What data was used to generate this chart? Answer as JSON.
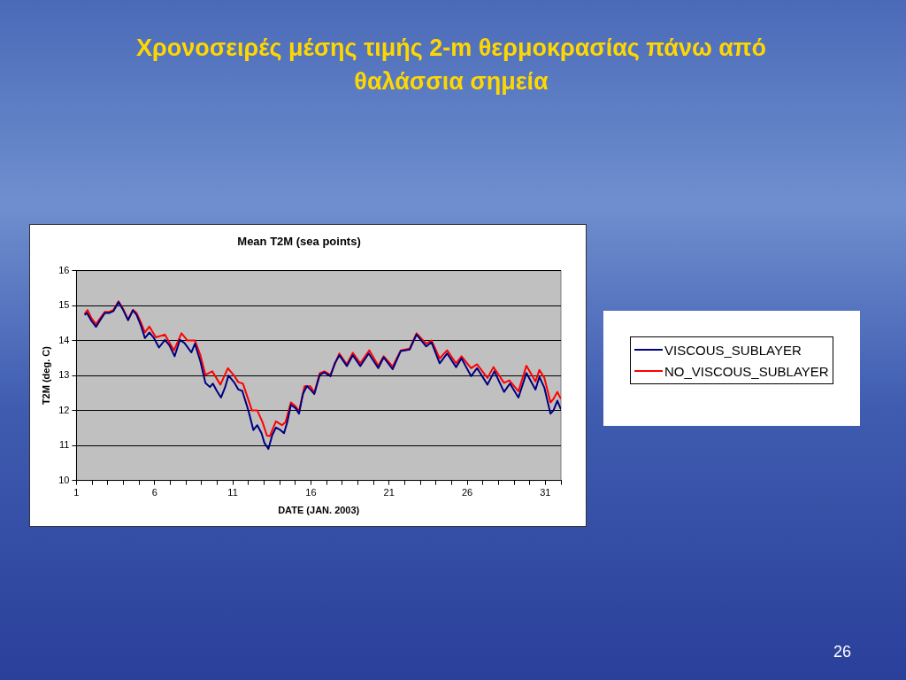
{
  "chart_data": {
    "type": "line",
    "title": "Χρονοσειρές μέσης τιμής 2-m θερμοκρασίας πάνω από θαλάσσια σημεία",
    "subtitle": "Mean T2M (sea points)",
    "xlabel": "DATE (JAN. 2003)",
    "ylabel": "T2M (deg. C)",
    "xlim": [
      1,
      32
    ],
    "ylim": [
      10,
      16
    ],
    "yticks": [
      10,
      11,
      12,
      13,
      14,
      15,
      16
    ],
    "xticks": [
      1,
      {
        "value": 2,
        "label": null
      },
      {
        "value": 3,
        "label": null
      },
      {
        "value": 4,
        "label": null
      },
      {
        "value": 5,
        "label": null
      },
      6,
      {
        "value": 7,
        "label": null
      },
      {
        "value": 8,
        "label": null
      },
      {
        "value": 9,
        "label": null
      },
      {
        "value": 10,
        "label": null
      },
      11,
      {
        "value": 12,
        "label": null
      },
      {
        "value": 13,
        "label": null
      },
      {
        "value": 14,
        "label": null
      },
      {
        "value": 15,
        "label": null
      },
      16,
      {
        "value": 17,
        "label": null
      },
      {
        "value": 18,
        "label": null
      },
      {
        "value": 19,
        "label": null
      },
      {
        "value": 20,
        "label": null
      },
      21,
      {
        "value": 22,
        "label": null
      },
      {
        "value": 23,
        "label": null
      },
      {
        "value": 24,
        "label": null
      },
      {
        "value": 25,
        "label": null
      },
      26,
      {
        "value": 27,
        "label": null
      },
      {
        "value": 28,
        "label": null
      },
      {
        "value": 29,
        "label": null
      },
      {
        "value": 30,
        "label": null
      },
      31,
      {
        "value": 32,
        "label": null
      }
    ],
    "grid": "y",
    "legend": "right",
    "marker": "none",
    "line_style": "solid",
    "annotations": [
      "26"
    ],
    "series": [
      {
        "name": "VISCOUS_SUBLAYER",
        "color": "#000080",
        "x": [
          1.52,
          1.67,
          1.96,
          2.25,
          2.54,
          2.82,
          3.11,
          3.36,
          3.69,
          3.98,
          4.3,
          4.61,
          4.84,
          5.13,
          5.38,
          5.66,
          5.93,
          6.28,
          6.66,
          6.95,
          7.28,
          7.62,
          7.91,
          8.35,
          8.58,
          8.93,
          9.25,
          9.54,
          9.73,
          9.98,
          10.25,
          10.5,
          10.73,
          11.08,
          11.36,
          11.61,
          12.0,
          12.32,
          12.57,
          12.84,
          13.03,
          13.28,
          13.53,
          13.76,
          14.05,
          14.28,
          14.49,
          14.72,
          15.01,
          15.24,
          15.49,
          15.74,
          15.97,
          16.22,
          16.57,
          16.86,
          17.25,
          17.53,
          17.82,
          18.3,
          18.68,
          19.16,
          19.7,
          20.31,
          20.66,
          21.23,
          21.75,
          22.32,
          22.76,
          23.38,
          23.72,
          24.24,
          24.72,
          25.29,
          25.64,
          26.25,
          26.63,
          27.3,
          27.74,
          28.36,
          28.74,
          29.28,
          29.79,
          30.37,
          30.62,
          30.94,
          31.33,
          31.52,
          31.77,
          32.0
        ],
        "values": [
          14.73,
          14.79,
          14.56,
          14.39,
          14.6,
          14.79,
          14.79,
          14.84,
          15.1,
          14.88,
          14.58,
          14.86,
          14.74,
          14.42,
          14.07,
          14.23,
          14.09,
          13.8,
          14.02,
          13.86,
          13.55,
          14.02,
          13.93,
          13.66,
          13.91,
          13.4,
          12.79,
          12.67,
          12.77,
          12.56,
          12.37,
          12.65,
          13.0,
          12.81,
          12.6,
          12.56,
          12.0,
          11.44,
          11.58,
          11.35,
          11.07,
          10.9,
          11.3,
          11.51,
          11.44,
          11.35,
          11.67,
          12.16,
          12.07,
          11.91,
          12.47,
          12.7,
          12.6,
          12.47,
          13.02,
          13.09,
          12.98,
          13.35,
          13.58,
          13.27,
          13.58,
          13.27,
          13.63,
          13.21,
          13.52,
          13.18,
          13.7,
          13.74,
          14.17,
          13.83,
          13.95,
          13.35,
          13.63,
          13.24,
          13.49,
          12.98,
          13.21,
          12.74,
          13.12,
          12.53,
          12.77,
          12.37,
          13.07,
          12.6,
          12.96,
          12.65,
          11.91,
          12.0,
          12.28,
          12.03
        ]
      },
      {
        "name": "NO_VISCOUS_SUBLAYER",
        "color": "#ff0000",
        "x": [
          1.52,
          1.71,
          1.96,
          2.25,
          2.54,
          2.82,
          3.11,
          3.36,
          3.69,
          3.98,
          4.3,
          4.61,
          4.84,
          5.13,
          5.38,
          5.66,
          6.08,
          6.66,
          7.24,
          7.72,
          8.1,
          8.58,
          8.93,
          9.25,
          9.69,
          10.21,
          10.69,
          11.08,
          11.36,
          11.65,
          12.23,
          12.57,
          12.9,
          13.19,
          13.38,
          13.76,
          14.15,
          14.38,
          14.72,
          15.01,
          15.24,
          15.59,
          15.97,
          16.22,
          16.57,
          16.86,
          17.25,
          17.82,
          18.3,
          18.68,
          19.16,
          19.74,
          20.31,
          20.66,
          21.23,
          21.75,
          22.32,
          22.76,
          23.38,
          23.72,
          24.24,
          24.72,
          25.29,
          25.64,
          26.25,
          26.63,
          27.3,
          27.68,
          28.36,
          28.7,
          29.28,
          29.79,
          30.37,
          30.62,
          30.94,
          31.33,
          31.52,
          31.77,
          32.0
        ],
        "values": [
          14.76,
          14.87,
          14.64,
          14.47,
          14.65,
          14.82,
          14.82,
          14.87,
          15.12,
          14.91,
          14.6,
          14.88,
          14.79,
          14.51,
          14.23,
          14.4,
          14.09,
          14.17,
          13.72,
          14.21,
          14.0,
          14.0,
          13.58,
          13.02,
          13.12,
          12.74,
          13.21,
          13.0,
          12.81,
          12.77,
          12.0,
          12.0,
          11.67,
          11.28,
          11.27,
          11.69,
          11.58,
          11.67,
          12.23,
          12.12,
          11.98,
          12.69,
          12.69,
          12.51,
          13.07,
          13.12,
          13.02,
          13.63,
          13.32,
          13.65,
          13.35,
          13.72,
          13.28,
          13.55,
          13.26,
          13.72,
          13.77,
          14.21,
          13.91,
          14.0,
          13.49,
          13.72,
          13.35,
          13.55,
          13.21,
          13.32,
          12.93,
          13.24,
          12.79,
          12.86,
          12.55,
          13.28,
          12.83,
          13.16,
          12.93,
          12.23,
          12.33,
          12.53,
          12.33
        ]
      }
    ]
  }
}
